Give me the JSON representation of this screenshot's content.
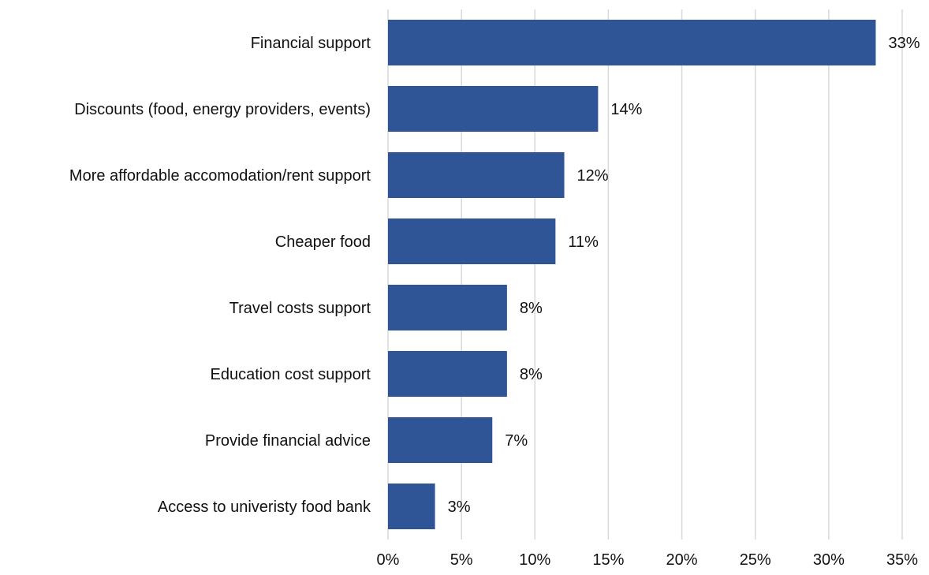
{
  "chart_data": {
    "type": "bar",
    "orientation": "horizontal",
    "categories": [
      "Financial support",
      "Discounts (food, energy providers, events)",
      "More affordable accomodation/rent support",
      "Cheaper food",
      "Travel costs support",
      "Education cost support",
      "Provide financial advice",
      "Access to univeristy food bank"
    ],
    "values": [
      33.2,
      14.3,
      12.0,
      11.4,
      8.1,
      8.1,
      7.1,
      3.2
    ],
    "data_labels": [
      "33%",
      "14%",
      "12%",
      "11%",
      "8%",
      "8%",
      "7%",
      "3%"
    ],
    "xlim": [
      0,
      35
    ],
    "x_ticks": [
      0,
      5,
      10,
      15,
      20,
      25,
      30,
      35
    ],
    "x_tick_labels": [
      "0%",
      "5%",
      "10%",
      "15%",
      "20%",
      "25%",
      "30%",
      "35%"
    ],
    "grid": true,
    "legend": "none",
    "colors": {
      "bar": "#2F5597",
      "grid": "#D9D9D9",
      "text": "#111111"
    }
  }
}
